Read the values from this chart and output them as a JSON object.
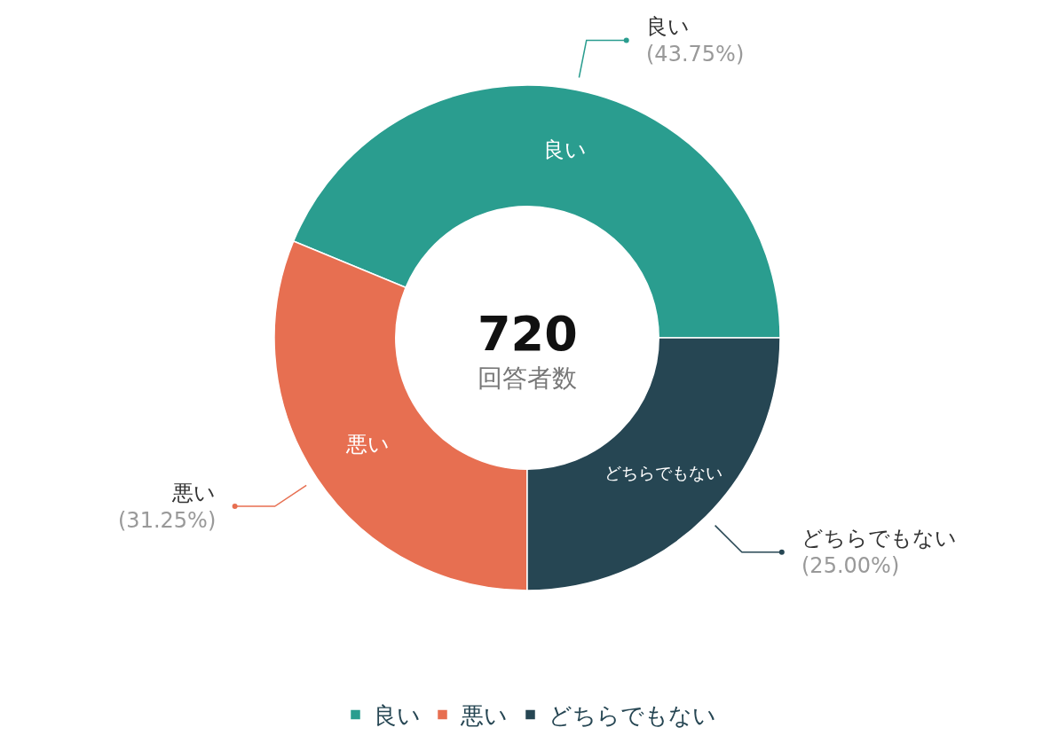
{
  "chart_data": {
    "type": "donut",
    "categories": [
      "良い",
      "悪い",
      "どちらでもない"
    ],
    "values": [
      43.75,
      31.25,
      25
    ],
    "value_labels": [
      "(43.75%)",
      "(31.25%)",
      "(25.00%)"
    ],
    "colors": [
      "#2a9d8f",
      "#e76f51",
      "#264653"
    ],
    "annotations": [
      "720",
      "回答者数"
    ],
    "legend": "bottom"
  }
}
